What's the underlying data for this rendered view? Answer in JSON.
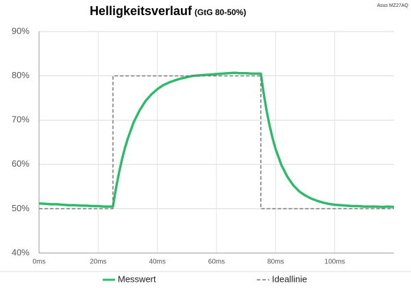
{
  "chart_data": {
    "type": "line",
    "title": "Helligkeitsverlauf",
    "subtitle": "(GtG 80-50%)",
    "annotation": "Asus MZ27AQ",
    "xlim": [
      0,
      120
    ],
    "xticks": [
      {
        "value": 0,
        "label": "0ms"
      },
      {
        "value": 20,
        "label": "20ms"
      },
      {
        "value": 40,
        "label": "40ms"
      },
      {
        "value": 60,
        "label": "60ms"
      },
      {
        "value": 80,
        "label": "80ms"
      },
      {
        "value": 100,
        "label": "100ms"
      }
    ],
    "ylim": [
      40,
      90
    ],
    "yticks": [
      {
        "value": 40,
        "label": "40%"
      },
      {
        "value": 50,
        "label": "50%"
      },
      {
        "value": 60,
        "label": "60%"
      },
      {
        "value": 70,
        "label": "70%"
      },
      {
        "value": 80,
        "label": "80%"
      },
      {
        "value": 90,
        "label": "90%"
      }
    ],
    "grid": true,
    "legend": "bottom",
    "series": [
      {
        "name": "Messwert",
        "color": "#2dbb6b",
        "dashed": false,
        "x": [
          0,
          2,
          4,
          6,
          8,
          10,
          12,
          14,
          16,
          18,
          20,
          22,
          24,
          25,
          26,
          27,
          28,
          29,
          30,
          32,
          34,
          36,
          38,
          40,
          42,
          44,
          46,
          48,
          50,
          52,
          54,
          56,
          58,
          60,
          62,
          64,
          66,
          68,
          70,
          72,
          74,
          75,
          76,
          77,
          78,
          79,
          80,
          82,
          84,
          86,
          88,
          90,
          92,
          94,
          96,
          98,
          100,
          102,
          104,
          106,
          108,
          110,
          112,
          114,
          116,
          118,
          120
        ],
        "values": [
          51.2,
          51.1,
          51.0,
          51.0,
          50.9,
          50.8,
          50.8,
          50.7,
          50.7,
          50.6,
          50.6,
          50.5,
          50.5,
          50.5,
          54.5,
          58.0,
          61.0,
          63.6,
          65.8,
          69.5,
          72.2,
          74.3,
          75.8,
          77.0,
          77.9,
          78.5,
          79.0,
          79.4,
          79.7,
          80.0,
          80.1,
          80.2,
          80.3,
          80.4,
          80.5,
          80.6,
          80.7,
          80.6,
          80.6,
          80.5,
          80.5,
          80.5,
          75.9,
          72.0,
          68.7,
          65.9,
          63.5,
          59.8,
          57.2,
          55.3,
          53.9,
          53.0,
          52.3,
          51.8,
          51.4,
          51.1,
          50.9,
          50.8,
          50.7,
          50.6,
          50.6,
          50.5,
          50.5,
          50.5,
          50.4,
          50.5,
          50.4
        ]
      },
      {
        "name": "Ideallinie",
        "color": "#777777",
        "dashed": true,
        "x": [
          0,
          25,
          25,
          75,
          75,
          120
        ],
        "values": [
          50,
          50,
          80,
          80,
          50,
          50
        ]
      }
    ]
  }
}
